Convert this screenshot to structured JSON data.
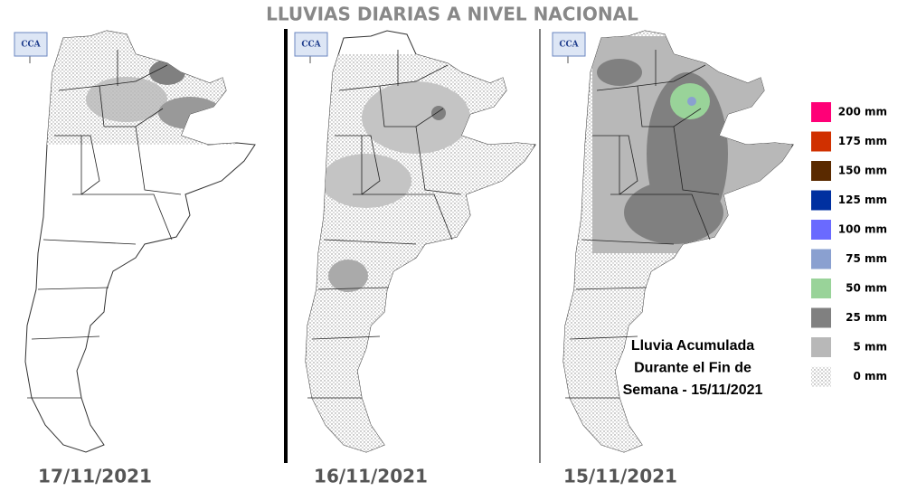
{
  "title": "LLUVIAS DIARIAS A NIVEL NACIONAL",
  "maps": [
    {
      "logo": "CCA",
      "date": "17/11/2021"
    },
    {
      "logo": "CCA",
      "date": "16/11/2021"
    },
    {
      "logo": "CCA",
      "date": "15/11/2021"
    }
  ],
  "annotation": [
    "Lluvia Acumulada",
    "Durante el Fin de",
    "Semana - 15/11/2021"
  ],
  "legend": [
    {
      "label": "200 mm",
      "color": "#ff0077"
    },
    {
      "label": "175 mm",
      "color": "#d03000"
    },
    {
      "label": "150 mm",
      "color": "#5a2a00"
    },
    {
      "label": "125 mm",
      "color": "#0030a0"
    },
    {
      "label": "100 mm",
      "color": "#6a6aff"
    },
    {
      "label": "75 mm",
      "color": "#8aa0d0"
    },
    {
      "label": "50 mm",
      "color": "#99d399"
    },
    {
      "label": "25 mm",
      "color": "#808080"
    },
    {
      "label": "5 mm",
      "color": "#b8b8b8"
    },
    {
      "label": "0 mm",
      "color": "#e4e4e4"
    }
  ]
}
